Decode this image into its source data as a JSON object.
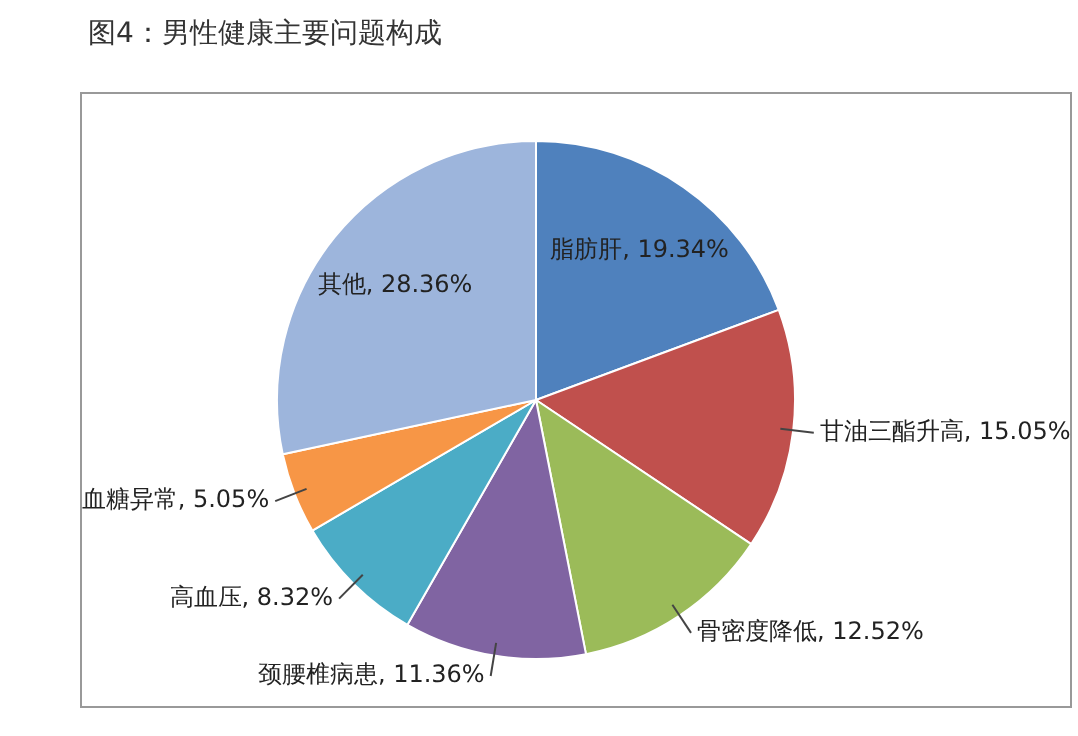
{
  "chart_data": {
    "type": "pie",
    "title": "图4：男性健康主要问题构成",
    "categories": [
      "脂肪肝",
      "甘油三酯升高",
      "骨密度降低",
      "颈腰椎病患",
      "高血压",
      "血糖异常",
      "其他"
    ],
    "values": [
      19.34,
      15.05,
      12.52,
      11.36,
      8.32,
      5.05,
      28.36
    ],
    "value_labels": [
      "19.34%",
      "15.05%",
      "12.52%",
      "11.36%",
      "8.32%",
      "5.05%",
      "28.36%"
    ],
    "colors": [
      "#4f81bd",
      "#c0504d",
      "#9bbb59",
      "#8064a2",
      "#4bacc6",
      "#f79646",
      "#9db5dc"
    ],
    "legend": false
  }
}
